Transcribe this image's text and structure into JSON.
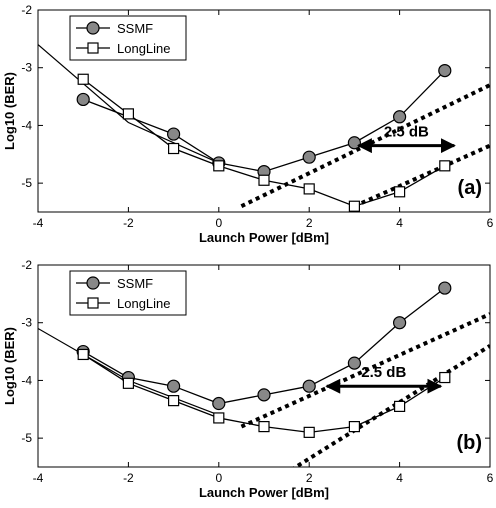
{
  "chart_data": [
    {
      "type": "line",
      "panel_label": "(a)",
      "xlabel": "Launch Power [dBm]",
      "ylabel": "Log10 (BER)",
      "xlim": [
        -4,
        6
      ],
      "ylim": [
        -5.5,
        -2
      ],
      "x_ticks": [
        "-4",
        "-2",
        "0",
        "2",
        "4",
        "6"
      ],
      "y_ticks": [
        "-2",
        "-3",
        "-4",
        "-5"
      ],
      "grid": false,
      "legend_position": "top-left",
      "series": [
        {
          "name": "SSMF",
          "marker": "circle",
          "color": "#888888",
          "x": [
            -3,
            -1,
            0,
            1,
            2,
            3,
            4,
            5
          ],
          "y": [
            -3.55,
            -4.15,
            -4.65,
            -4.8,
            -4.55,
            -4.3,
            -3.85,
            -3.05
          ]
        },
        {
          "name": "LongLine",
          "marker": "square",
          "color": "#ffffff",
          "x": [
            -3,
            -2,
            -1,
            0,
            1,
            2,
            3,
            4,
            5
          ],
          "y": [
            -3.2,
            -3.8,
            -4.4,
            -4.7,
            -4.95,
            -5.1,
            -5.4,
            -5.15,
            -4.7
          ]
        }
      ],
      "extra_lines": [
        {
          "x": [
            -4,
            -2,
            0
          ],
          "y": [
            -2.6,
            -3.95,
            -4.65
          ]
        },
        {
          "x": [
            0.5,
            6
          ],
          "y": [
            -5.4,
            -3.3
          ]
        },
        {
          "x": [
            3,
            6
          ],
          "y": [
            -5.4,
            -4.35
          ]
        }
      ],
      "annotations": [
        {
          "text": "2.5 dB",
          "arrow_x": [
            3,
            5.3
          ],
          "arrow_y": -4.35
        }
      ]
    },
    {
      "type": "line",
      "panel_label": "(b)",
      "xlabel": "Launch Power [dBm]",
      "ylabel": "Log10 (BER)",
      "xlim": [
        -4,
        6
      ],
      "ylim": [
        -5.5,
        -2
      ],
      "x_ticks": [
        "-4",
        "-2",
        "0",
        "2",
        "4",
        "6"
      ],
      "y_ticks": [
        "-2",
        "-3",
        "-4",
        "-5"
      ],
      "grid": false,
      "legend_position": "top-left",
      "series": [
        {
          "name": "SSMF",
          "marker": "circle",
          "color": "#888888",
          "x": [
            -3,
            -2,
            -1,
            0,
            1,
            2,
            3,
            4,
            5
          ],
          "y": [
            -3.5,
            -3.95,
            -4.1,
            -4.4,
            -4.25,
            -4.1,
            -3.7,
            -3.0,
            -2.4
          ]
        },
        {
          "name": "LongLine",
          "marker": "square",
          "color": "#ffffff",
          "x": [
            -3,
            -2,
            -1,
            0,
            1,
            2,
            3,
            4,
            5
          ],
          "y": [
            -3.55,
            -4.05,
            -4.35,
            -4.65,
            -4.8,
            -4.9,
            -4.8,
            -4.45,
            -3.95
          ]
        }
      ],
      "extra_lines": [
        {
          "x": [
            -4,
            -2,
            0
          ],
          "y": [
            -3.1,
            -4.0,
            -4.6
          ]
        },
        {
          "x": [
            0.5,
            6
          ],
          "y": [
            -4.8,
            -2.85
          ]
        },
        {
          "x": [
            1.6,
            6
          ],
          "y": [
            -5.55,
            -3.4
          ]
        }
      ],
      "annotations": [
        {
          "text": "2.5 dB",
          "arrow_x": [
            2.3,
            5.0
          ],
          "arrow_y": -4.1
        }
      ]
    }
  ]
}
